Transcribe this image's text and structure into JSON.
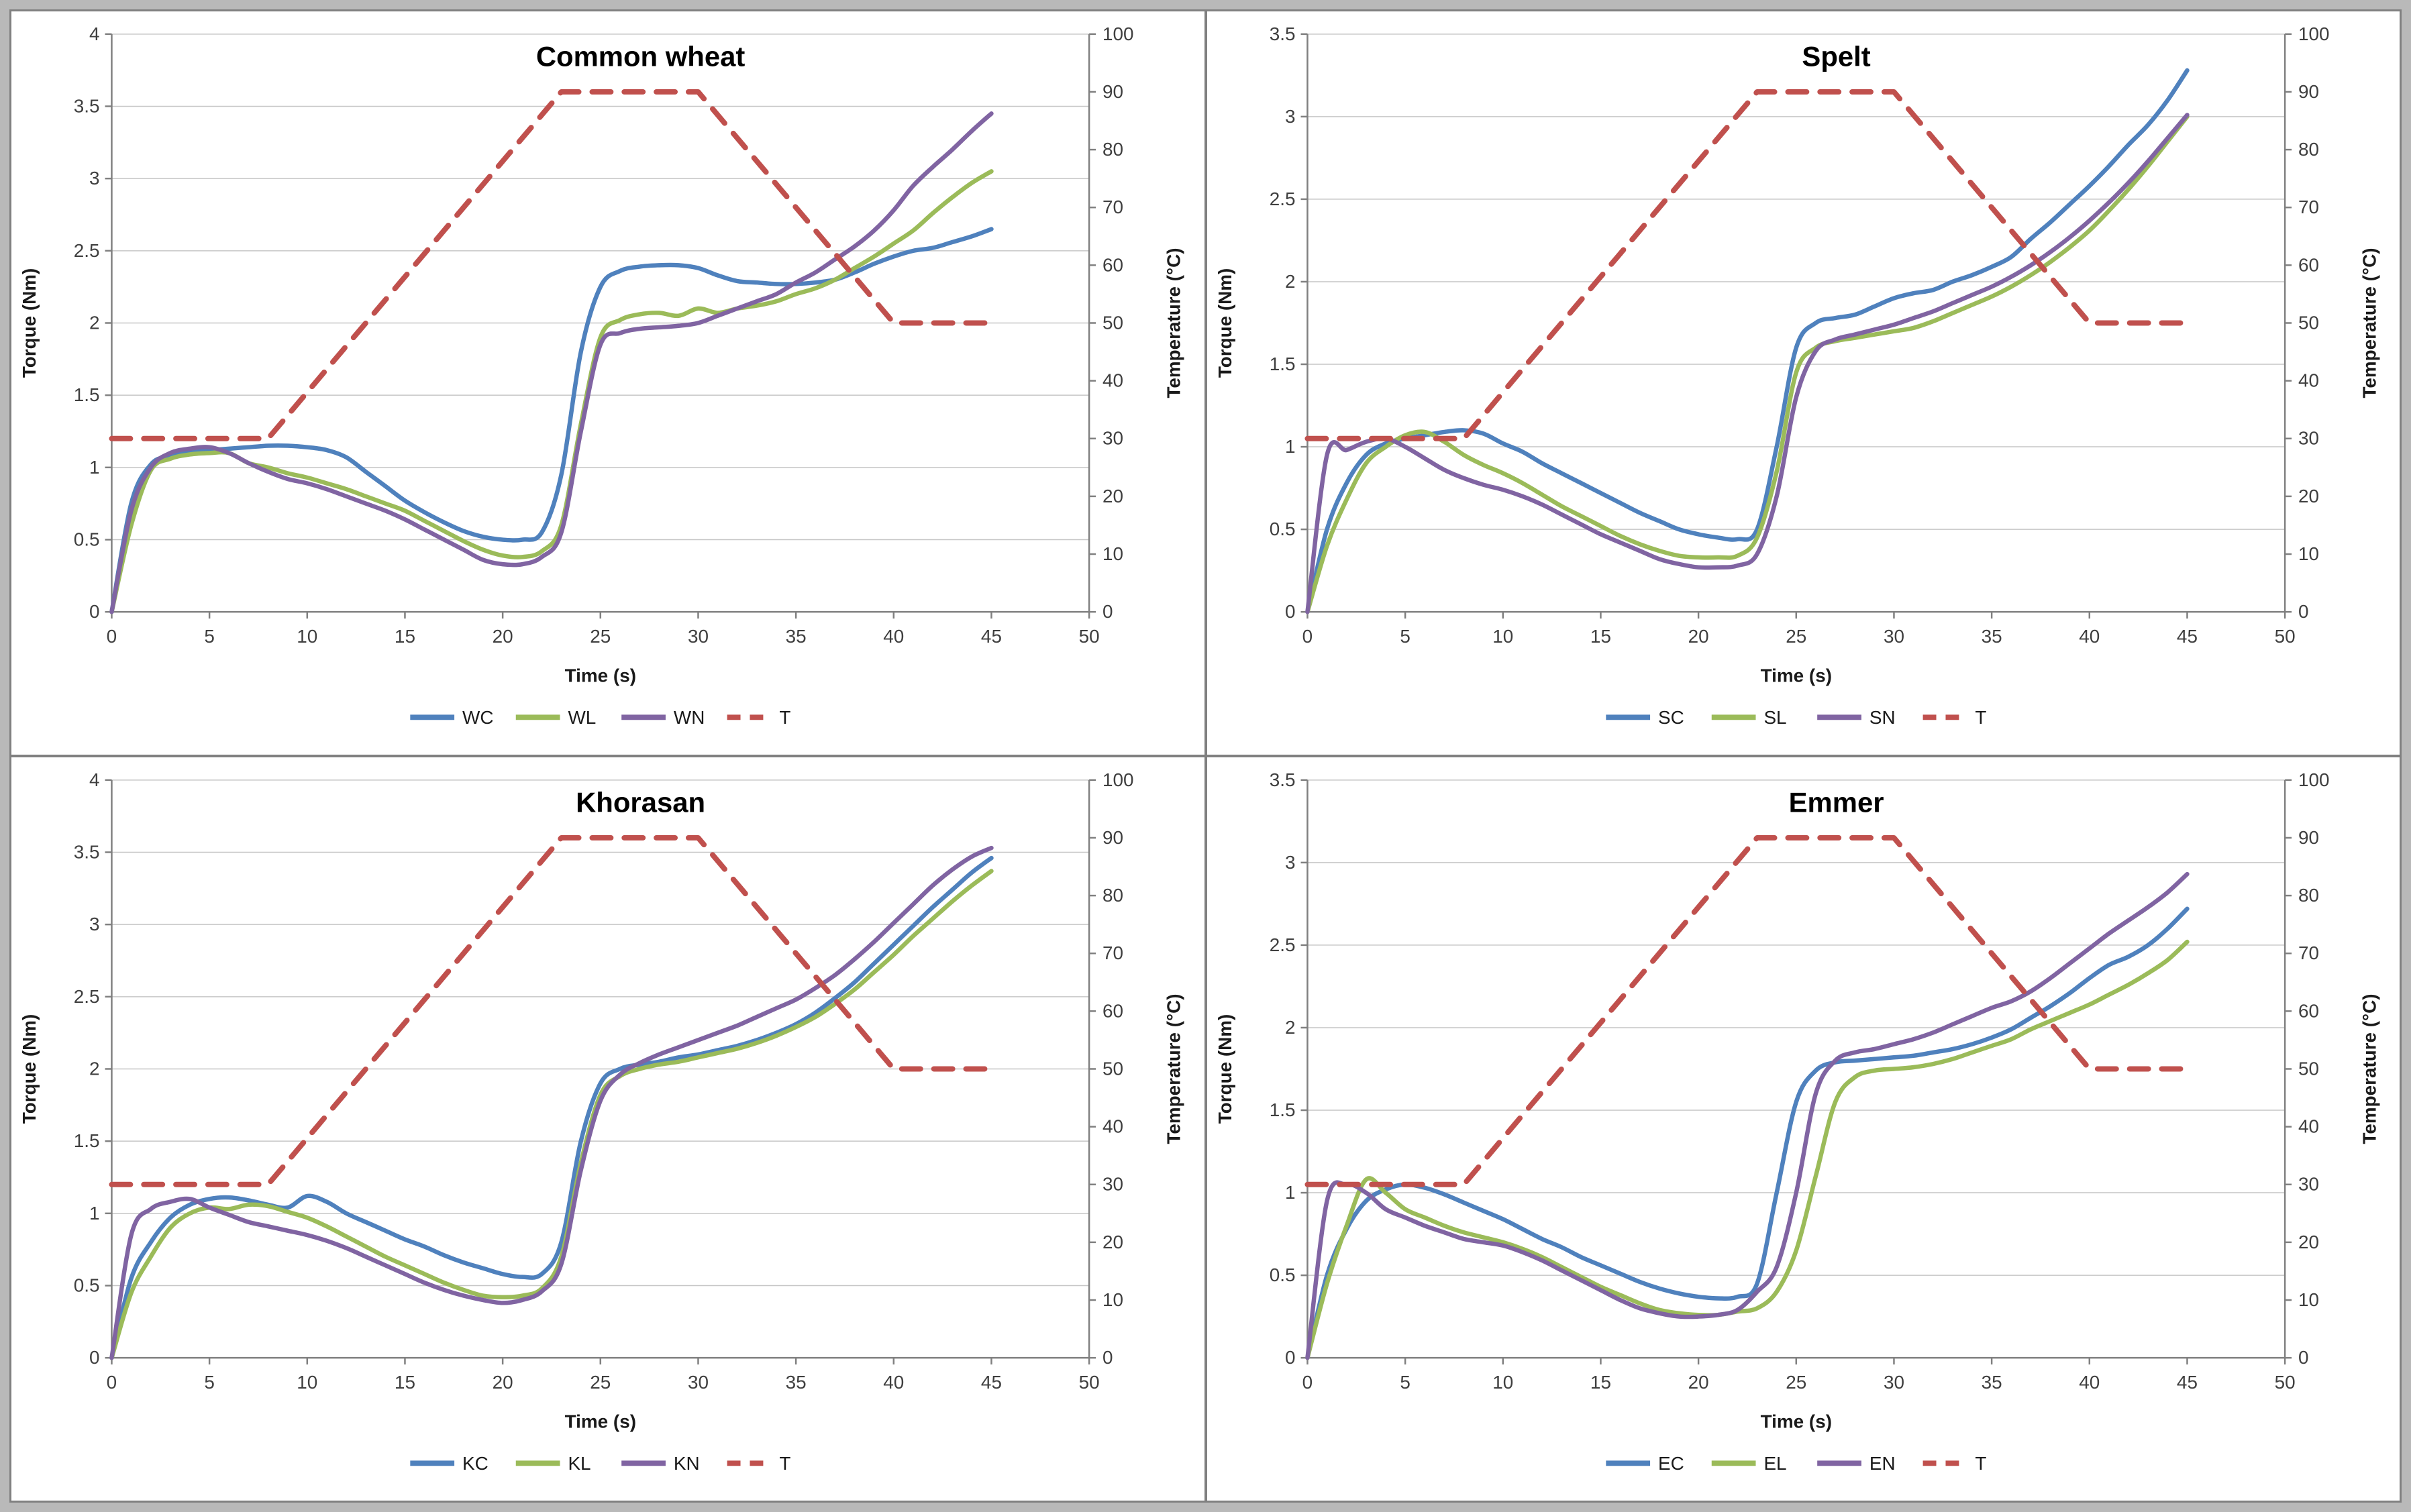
{
  "figure": {
    "panel_titles": [
      "Common wheat",
      "Spelt",
      "Khorasan",
      "Emmer"
    ],
    "colors": {
      "series_blue": "#4F81BD",
      "series_green": "#9BBB59",
      "series_purple": "#8064A2",
      "series_red": "#C0504D",
      "gridline": "#C6C6C6",
      "axis": "#808080",
      "tick_text": "#3F3F3F",
      "frame": "#808080"
    }
  },
  "chart_data": [
    {
      "type": "line",
      "title": "Common wheat",
      "xlabel": "Time (s)",
      "ylabel_left": "Torque (Nm)",
      "ylabel_right": "Temperature (°C)",
      "xlim": [
        0,
        50
      ],
      "xstep": 5,
      "ylim_left": [
        0,
        4
      ],
      "ystep_left": 0.5,
      "ylim_right": [
        0,
        100
      ],
      "ystep_right": 10,
      "grid": "horizontal",
      "legend_position": "bottom",
      "x": [
        0,
        1,
        2,
        3,
        4,
        5,
        6,
        7,
        8,
        9,
        10,
        11,
        12,
        13,
        14,
        15,
        16,
        17,
        18,
        19,
        20,
        21,
        22,
        23,
        24,
        25,
        26,
        27,
        28,
        29,
        30,
        31,
        32,
        33,
        34,
        35,
        36,
        37,
        38,
        39,
        40,
        41,
        42,
        43,
        44,
        45
      ],
      "series": [
        {
          "name": "WC",
          "color": "#4F81BD",
          "axis": "left",
          "dashed": false,
          "values": [
            0,
            0.75,
            1.02,
            1.08,
            1.11,
            1.12,
            1.13,
            1.14,
            1.15,
            1.15,
            1.14,
            1.12,
            1.07,
            0.97,
            0.87,
            0.77,
            0.69,
            0.62,
            0.56,
            0.52,
            0.5,
            0.5,
            0.55,
            0.95,
            1.8,
            2.25,
            2.36,
            2.39,
            2.4,
            2.4,
            2.38,
            2.33,
            2.29,
            2.28,
            2.27,
            2.27,
            2.28,
            2.3,
            2.35,
            2.41,
            2.46,
            2.5,
            2.52,
            2.56,
            2.6,
            2.65
          ]
        },
        {
          "name": "WL",
          "color": "#9BBB59",
          "axis": "left",
          "dashed": false,
          "values": [
            0,
            0.6,
            0.98,
            1.06,
            1.09,
            1.1,
            1.1,
            1.03,
            1.0,
            0.96,
            0.93,
            0.89,
            0.85,
            0.8,
            0.75,
            0.7,
            0.63,
            0.56,
            0.49,
            0.43,
            0.39,
            0.38,
            0.42,
            0.6,
            1.3,
            1.9,
            2.02,
            2.06,
            2.07,
            2.05,
            2.1,
            2.07,
            2.1,
            2.12,
            2.15,
            2.2,
            2.24,
            2.3,
            2.38,
            2.46,
            2.55,
            2.64,
            2.76,
            2.87,
            2.97,
            3.05
          ]
        },
        {
          "name": "WN",
          "color": "#8064A2",
          "axis": "left",
          "dashed": false,
          "values": [
            0,
            0.7,
            1.0,
            1.1,
            1.13,
            1.14,
            1.1,
            1.03,
            0.97,
            0.92,
            0.89,
            0.85,
            0.8,
            0.75,
            0.7,
            0.64,
            0.57,
            0.5,
            0.43,
            0.36,
            0.33,
            0.33,
            0.38,
            0.55,
            1.25,
            1.85,
            1.93,
            1.96,
            1.97,
            1.98,
            2.0,
            2.05,
            2.1,
            2.15,
            2.2,
            2.28,
            2.35,
            2.44,
            2.53,
            2.64,
            2.78,
            2.95,
            3.08,
            3.2,
            3.33,
            3.45
          ]
        },
        {
          "name": "T",
          "color": "#C0504D",
          "axis": "right",
          "dashed": true,
          "x": [
            0,
            8,
            23,
            30,
            40,
            45
          ],
          "values": [
            30,
            30,
            90,
            90,
            50,
            50
          ]
        }
      ]
    },
    {
      "type": "line",
      "title": "Spelt",
      "xlabel": "Time (s)",
      "ylabel_left": "Torque (Nm)",
      "ylabel_right": "Temperature (°C)",
      "xlim": [
        0,
        50
      ],
      "xstep": 5,
      "ylim_left": [
        0,
        3.5
      ],
      "ystep_left": 0.5,
      "ylim_right": [
        0,
        100
      ],
      "ystep_right": 10,
      "grid": "horizontal",
      "legend_position": "bottom",
      "x": [
        0,
        1,
        2,
        3,
        4,
        5,
        6,
        7,
        8,
        9,
        10,
        11,
        12,
        13,
        14,
        15,
        16,
        17,
        18,
        19,
        20,
        21,
        22,
        23,
        24,
        25,
        26,
        27,
        28,
        29,
        30,
        31,
        32,
        33,
        34,
        35,
        36,
        37,
        38,
        39,
        40,
        41,
        42,
        43,
        44,
        45
      ],
      "series": [
        {
          "name": "SC",
          "color": "#4F81BD",
          "axis": "left",
          "dashed": false,
          "values": [
            0,
            0.5,
            0.78,
            0.95,
            1.02,
            1.05,
            1.07,
            1.09,
            1.1,
            1.08,
            1.02,
            0.97,
            0.9,
            0.84,
            0.78,
            0.72,
            0.66,
            0.6,
            0.55,
            0.5,
            0.47,
            0.45,
            0.44,
            0.5,
            1.0,
            1.6,
            1.75,
            1.78,
            1.8,
            1.85,
            1.9,
            1.93,
            1.95,
            2.0,
            2.04,
            2.09,
            2.15,
            2.26,
            2.36,
            2.47,
            2.58,
            2.7,
            2.83,
            2.95,
            3.1,
            3.28
          ]
        },
        {
          "name": "SL",
          "color": "#9BBB59",
          "axis": "left",
          "dashed": false,
          "values": [
            0,
            0.4,
            0.68,
            0.9,
            1.0,
            1.07,
            1.09,
            1.03,
            0.95,
            0.89,
            0.84,
            0.78,
            0.71,
            0.64,
            0.58,
            0.52,
            0.46,
            0.41,
            0.37,
            0.34,
            0.33,
            0.33,
            0.34,
            0.45,
            0.85,
            1.45,
            1.6,
            1.64,
            1.66,
            1.68,
            1.7,
            1.72,
            1.76,
            1.81,
            1.86,
            1.91,
            1.97,
            2.04,
            2.12,
            2.21,
            2.31,
            2.43,
            2.56,
            2.7,
            2.85,
            3.0
          ]
        },
        {
          "name": "SN",
          "color": "#8064A2",
          "axis": "left",
          "dashed": false,
          "values": [
            0,
            0.95,
            0.98,
            1.03,
            1.05,
            1.0,
            0.93,
            0.86,
            0.81,
            0.77,
            0.74,
            0.7,
            0.65,
            0.59,
            0.53,
            0.47,
            0.42,
            0.37,
            0.32,
            0.29,
            0.27,
            0.27,
            0.28,
            0.35,
            0.7,
            1.3,
            1.58,
            1.65,
            1.68,
            1.71,
            1.74,
            1.78,
            1.82,
            1.87,
            1.92,
            1.97,
            2.03,
            2.1,
            2.18,
            2.27,
            2.37,
            2.48,
            2.6,
            2.73,
            2.87,
            3.01
          ]
        },
        {
          "name": "T",
          "color": "#C0504D",
          "axis": "right",
          "dashed": true,
          "x": [
            0,
            8,
            23,
            30,
            40,
            45
          ],
          "values": [
            30,
            30,
            90,
            90,
            50,
            50
          ]
        }
      ]
    },
    {
      "type": "line",
      "title": "Khorasan",
      "xlabel": "Time (s)",
      "ylabel_left": "Torque (Nm)",
      "ylabel_right": "Temperature (°C)",
      "xlim": [
        0,
        50
      ],
      "xstep": 5,
      "ylim_left": [
        0,
        4
      ],
      "ystep_left": 0.5,
      "ylim_right": [
        0,
        100
      ],
      "ystep_right": 10,
      "grid": "horizontal",
      "legend_position": "bottom",
      "x": [
        0,
        1,
        2,
        3,
        4,
        5,
        6,
        7,
        8,
        9,
        10,
        11,
        12,
        13,
        14,
        15,
        16,
        17,
        18,
        19,
        20,
        21,
        22,
        23,
        24,
        25,
        26,
        27,
        28,
        29,
        30,
        31,
        32,
        33,
        34,
        35,
        36,
        37,
        38,
        39,
        40,
        41,
        42,
        43,
        44,
        45
      ],
      "series": [
        {
          "name": "KC",
          "color": "#4F81BD",
          "axis": "left",
          "dashed": false,
          "values": [
            0,
            0.55,
            0.8,
            0.97,
            1.06,
            1.1,
            1.11,
            1.09,
            1.06,
            1.04,
            1.12,
            1.08,
            1.0,
            0.94,
            0.88,
            0.82,
            0.77,
            0.71,
            0.66,
            0.62,
            0.58,
            0.56,
            0.58,
            0.8,
            1.5,
            1.9,
            2.0,
            2.03,
            2.05,
            2.08,
            2.1,
            2.13,
            2.16,
            2.2,
            2.25,
            2.31,
            2.39,
            2.49,
            2.6,
            2.73,
            2.86,
            2.99,
            3.12,
            3.24,
            3.36,
            3.46
          ]
        },
        {
          "name": "KL",
          "color": "#9BBB59",
          "axis": "left",
          "dashed": false,
          "values": [
            0,
            0.45,
            0.7,
            0.9,
            1.0,
            1.04,
            1.03,
            1.06,
            1.05,
            1.01,
            0.97,
            0.91,
            0.84,
            0.77,
            0.7,
            0.64,
            0.58,
            0.52,
            0.47,
            0.43,
            0.42,
            0.43,
            0.48,
            0.7,
            1.35,
            1.82,
            1.95,
            2.0,
            2.03,
            2.05,
            2.08,
            2.11,
            2.14,
            2.18,
            2.23,
            2.29,
            2.36,
            2.45,
            2.55,
            2.67,
            2.79,
            2.92,
            3.04,
            3.16,
            3.27,
            3.37
          ]
        },
        {
          "name": "KN",
          "color": "#8064A2",
          "axis": "left",
          "dashed": false,
          "values": [
            0,
            0.85,
            1.03,
            1.08,
            1.1,
            1.04,
            0.99,
            0.94,
            0.91,
            0.88,
            0.85,
            0.81,
            0.76,
            0.7,
            0.64,
            0.58,
            0.52,
            0.47,
            0.43,
            0.4,
            0.38,
            0.4,
            0.46,
            0.65,
            1.3,
            1.78,
            1.96,
            2.04,
            2.1,
            2.15,
            2.2,
            2.25,
            2.3,
            2.36,
            2.42,
            2.48,
            2.56,
            2.65,
            2.76,
            2.88,
            3.01,
            3.14,
            3.27,
            3.38,
            3.47,
            3.53
          ]
        },
        {
          "name": "T",
          "color": "#C0504D",
          "axis": "right",
          "dashed": true,
          "x": [
            0,
            8,
            23,
            30,
            40,
            45
          ],
          "values": [
            30,
            30,
            90,
            90,
            50,
            50
          ]
        }
      ]
    },
    {
      "type": "line",
      "title": "Emmer",
      "xlabel": "Time (s)",
      "ylabel_left": "Torque (Nm)",
      "ylabel_right": "Temperature (°C)",
      "xlim": [
        0,
        50
      ],
      "xstep": 5,
      "ylim_left": [
        0,
        3.5
      ],
      "ystep_left": 0.5,
      "ylim_right": [
        0,
        100
      ],
      "ystep_right": 10,
      "grid": "horizontal",
      "legend_position": "bottom",
      "x": [
        0,
        1,
        2,
        3,
        4,
        5,
        6,
        7,
        8,
        9,
        10,
        11,
        12,
        13,
        14,
        15,
        16,
        17,
        18,
        19,
        20,
        21,
        22,
        23,
        24,
        25,
        26,
        27,
        28,
        29,
        30,
        31,
        32,
        33,
        34,
        35,
        36,
        37,
        38,
        39,
        40,
        41,
        42,
        43,
        44,
        45
      ],
      "series": [
        {
          "name": "EC",
          "color": "#4F81BD",
          "axis": "left",
          "dashed": false,
          "values": [
            0,
            0.5,
            0.78,
            0.95,
            1.02,
            1.05,
            1.03,
            0.99,
            0.94,
            0.89,
            0.84,
            0.78,
            0.72,
            0.67,
            0.61,
            0.56,
            0.51,
            0.46,
            0.42,
            0.39,
            0.37,
            0.36,
            0.37,
            0.45,
            1.0,
            1.55,
            1.74,
            1.79,
            1.8,
            1.81,
            1.82,
            1.83,
            1.85,
            1.87,
            1.9,
            1.94,
            1.99,
            2.06,
            2.13,
            2.21,
            2.3,
            2.38,
            2.43,
            2.5,
            2.6,
            2.72
          ]
        },
        {
          "name": "EL",
          "color": "#9BBB59",
          "axis": "left",
          "dashed": false,
          "values": [
            0,
            0.45,
            0.8,
            1.08,
            1.0,
            0.9,
            0.85,
            0.8,
            0.76,
            0.73,
            0.7,
            0.66,
            0.61,
            0.55,
            0.49,
            0.43,
            0.38,
            0.33,
            0.29,
            0.27,
            0.26,
            0.26,
            0.28,
            0.3,
            0.4,
            0.65,
            1.1,
            1.55,
            1.7,
            1.74,
            1.75,
            1.76,
            1.78,
            1.81,
            1.85,
            1.89,
            1.93,
            1.99,
            2.04,
            2.09,
            2.14,
            2.2,
            2.26,
            2.33,
            2.41,
            2.52
          ]
        },
        {
          "name": "EN",
          "color": "#8064A2",
          "axis": "left",
          "dashed": false,
          "values": [
            0,
            0.95,
            1.05,
            1.0,
            0.9,
            0.85,
            0.8,
            0.76,
            0.72,
            0.7,
            0.68,
            0.64,
            0.59,
            0.53,
            0.47,
            0.41,
            0.35,
            0.3,
            0.27,
            0.25,
            0.25,
            0.26,
            0.29,
            0.4,
            0.55,
            1.0,
            1.6,
            1.8,
            1.85,
            1.87,
            1.9,
            1.93,
            1.97,
            2.02,
            2.07,
            2.12,
            2.16,
            2.22,
            2.3,
            2.39,
            2.48,
            2.57,
            2.65,
            2.73,
            2.82,
            2.93
          ]
        },
        {
          "name": "T",
          "color": "#C0504D",
          "axis": "right",
          "dashed": true,
          "x": [
            0,
            8,
            23,
            30,
            40,
            45
          ],
          "values": [
            30,
            30,
            90,
            90,
            50,
            50
          ]
        }
      ]
    }
  ]
}
